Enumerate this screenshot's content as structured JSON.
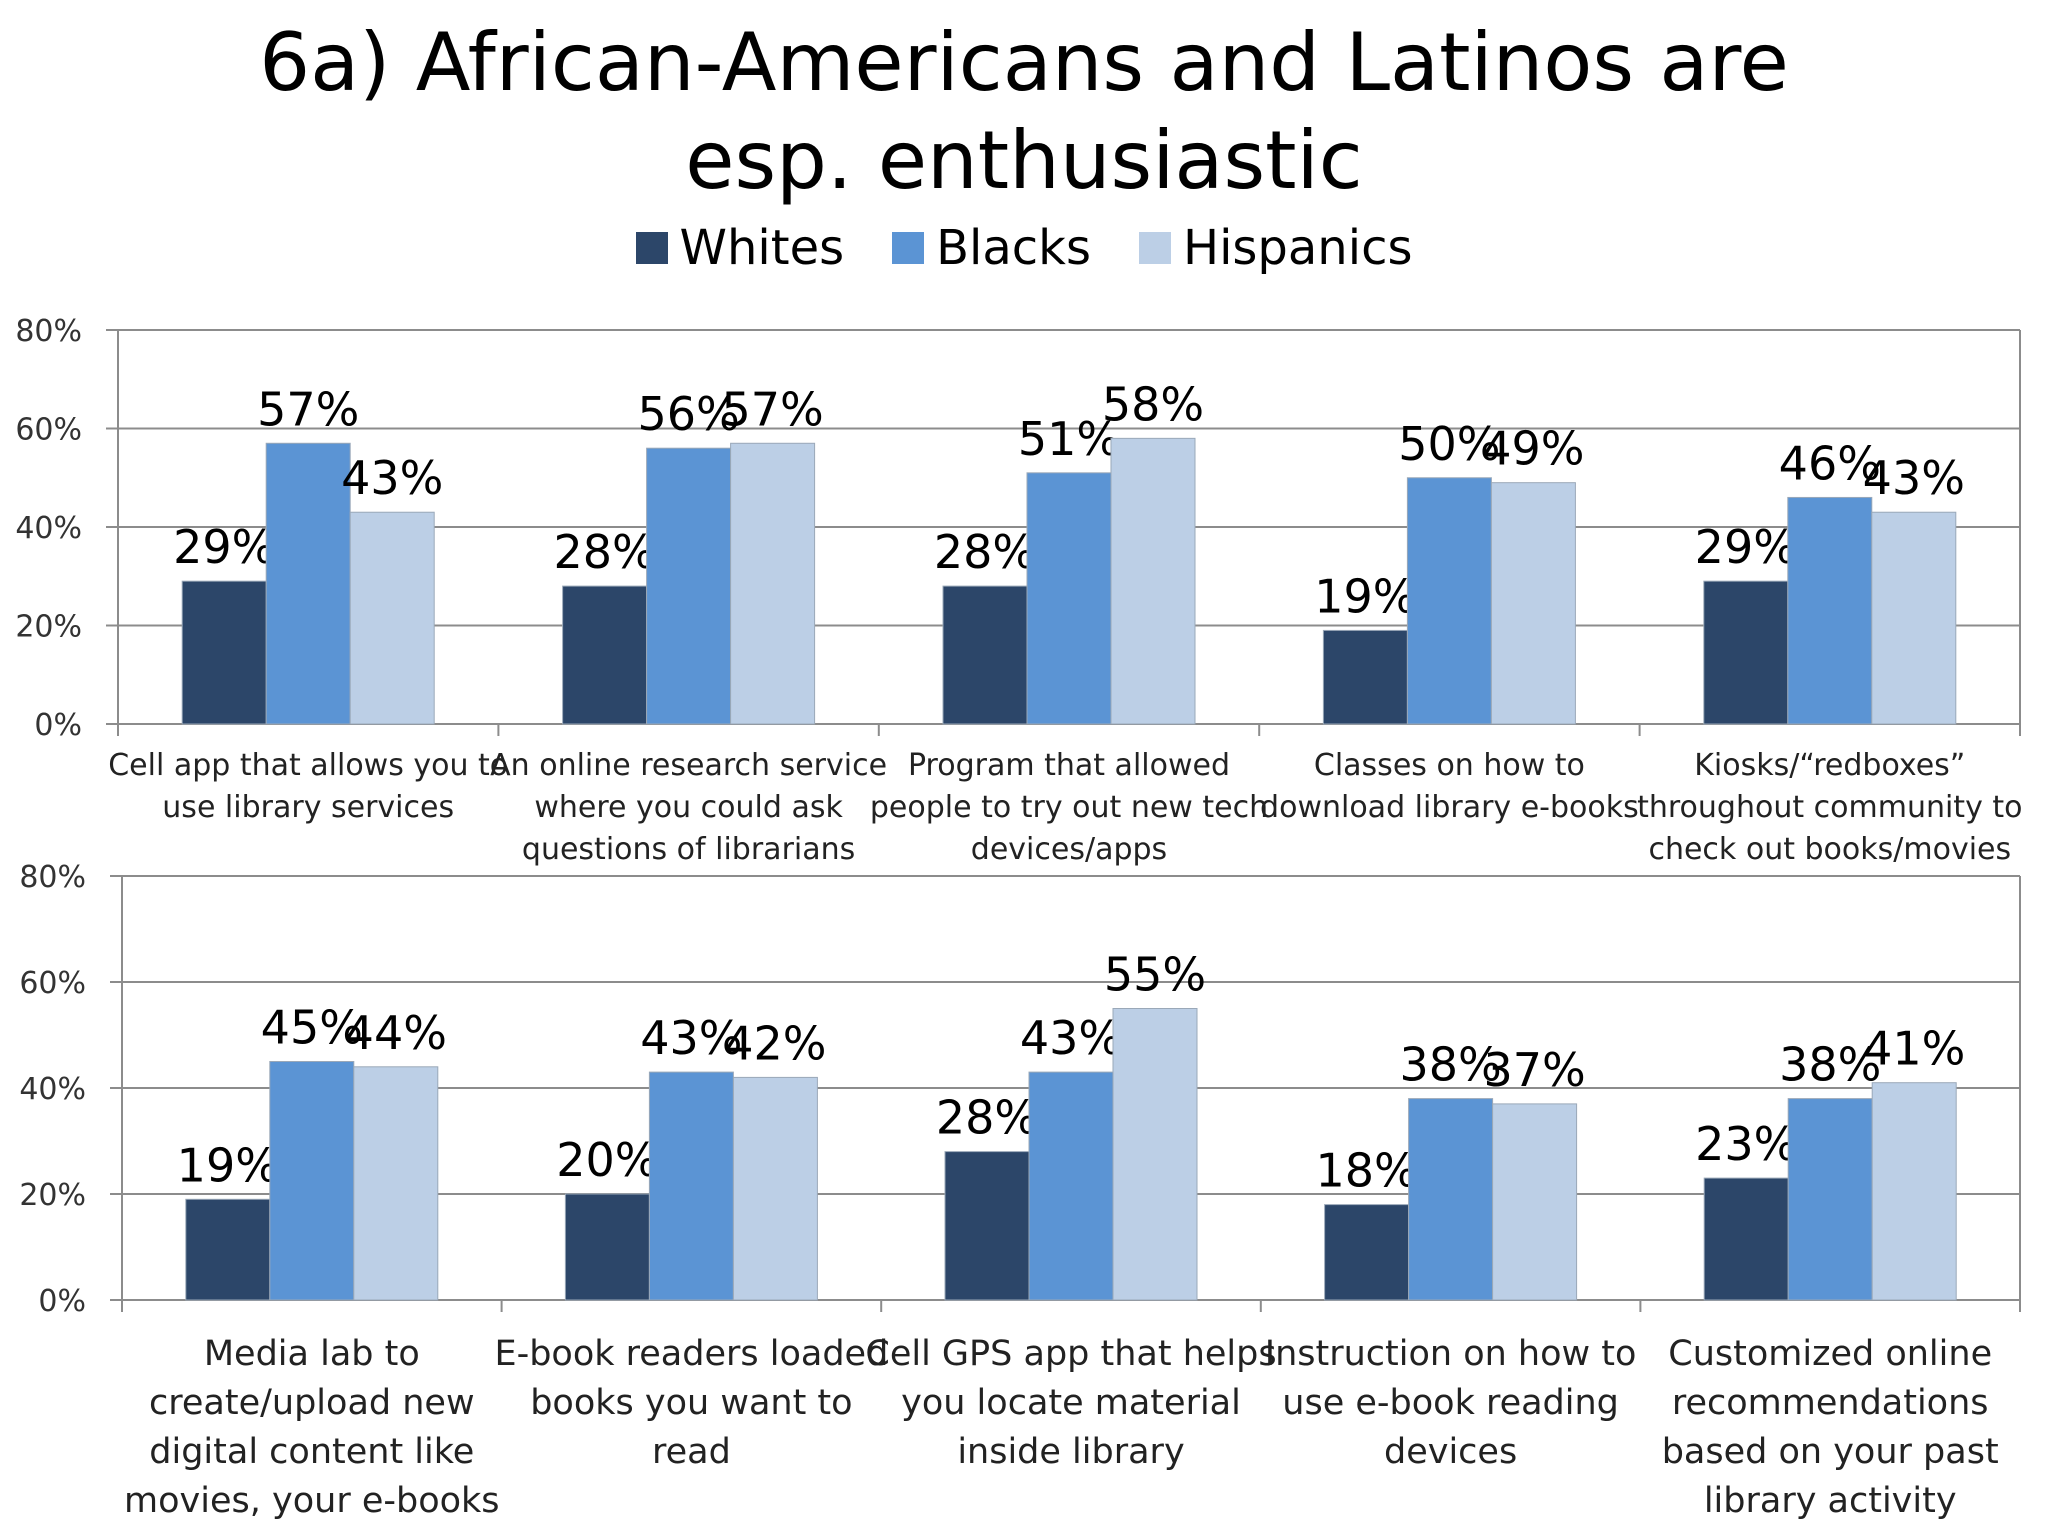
{
  "slide": {
    "title": "6a) African-Americans and Latinos are esp. enthusiastic"
  },
  "legend": {
    "items": [
      {
        "name": "Whites",
        "color": "#2c4669"
      },
      {
        "name": "Blacks",
        "color": "#5b94d4"
      },
      {
        "name": "Hispanics",
        "color": "#bccfe6"
      }
    ]
  },
  "chart_data": [
    {
      "type": "bar",
      "legend_position": "top",
      "grid": true,
      "ylim": [
        0,
        80
      ],
      "yticks": [
        "0%",
        "20%",
        "40%",
        "60%",
        "80%"
      ],
      "categories": [
        [
          "Cell app that allows you to",
          "use library services"
        ],
        [
          "An online research service",
          "where you could ask",
          "questions of librarians"
        ],
        [
          "Program that allowed",
          "people to try out new tech",
          "devices/apps"
        ],
        [
          "Classes on how to",
          "download library e-books"
        ],
        [
          "Kiosks/“redboxes”",
          "throughout community to",
          "check out books/movies"
        ]
      ],
      "series": [
        {
          "name": "Whites",
          "values": [
            29,
            28,
            28,
            19,
            29
          ],
          "labels": [
            "29%",
            "28%",
            "28%",
            "19%",
            "29%"
          ]
        },
        {
          "name": "Blacks",
          "values": [
            57,
            56,
            51,
            50,
            46
          ],
          "labels": [
            "57%",
            "56%",
            "51%",
            "50%",
            "46%"
          ]
        },
        {
          "name": "Hispanics",
          "values": [
            43,
            57,
            58,
            49,
            43
          ],
          "labels": [
            "43%",
            "57%",
            "58%",
            "49%",
            "43%"
          ]
        }
      ]
    },
    {
      "type": "bar",
      "legend_position": "top",
      "grid": true,
      "ylim": [
        0,
        80
      ],
      "yticks": [
        "0%",
        "20%",
        "40%",
        "60%",
        "80%"
      ],
      "categories": [
        [
          "Media lab to",
          "create/upload new",
          "digital content like",
          "movies, your e-books"
        ],
        [
          "E-book readers loaded",
          "books you want to",
          "read"
        ],
        [
          "Cell GPS app that helps",
          "you locate material",
          "inside library"
        ],
        [
          "Instruction on how to",
          "use e-book reading",
          "devices"
        ],
        [
          "Customized online",
          "recommendations",
          "based on your past",
          "library activity"
        ]
      ],
      "series": [
        {
          "name": "Whites",
          "values": [
            19,
            20,
            28,
            18,
            23
          ],
          "labels": [
            "19%",
            "20%",
            "28%",
            "18%",
            "23%"
          ]
        },
        {
          "name": "Blacks",
          "values": [
            45,
            43,
            43,
            38,
            38
          ],
          "labels": [
            "45%",
            "43%",
            "43%",
            "38%",
            "38%"
          ]
        },
        {
          "name": "Hispanics",
          "values": [
            44,
            42,
            55,
            37,
            41
          ],
          "labels": [
            "44%",
            "42%",
            "55%",
            "37%",
            "41%"
          ]
        }
      ]
    }
  ]
}
